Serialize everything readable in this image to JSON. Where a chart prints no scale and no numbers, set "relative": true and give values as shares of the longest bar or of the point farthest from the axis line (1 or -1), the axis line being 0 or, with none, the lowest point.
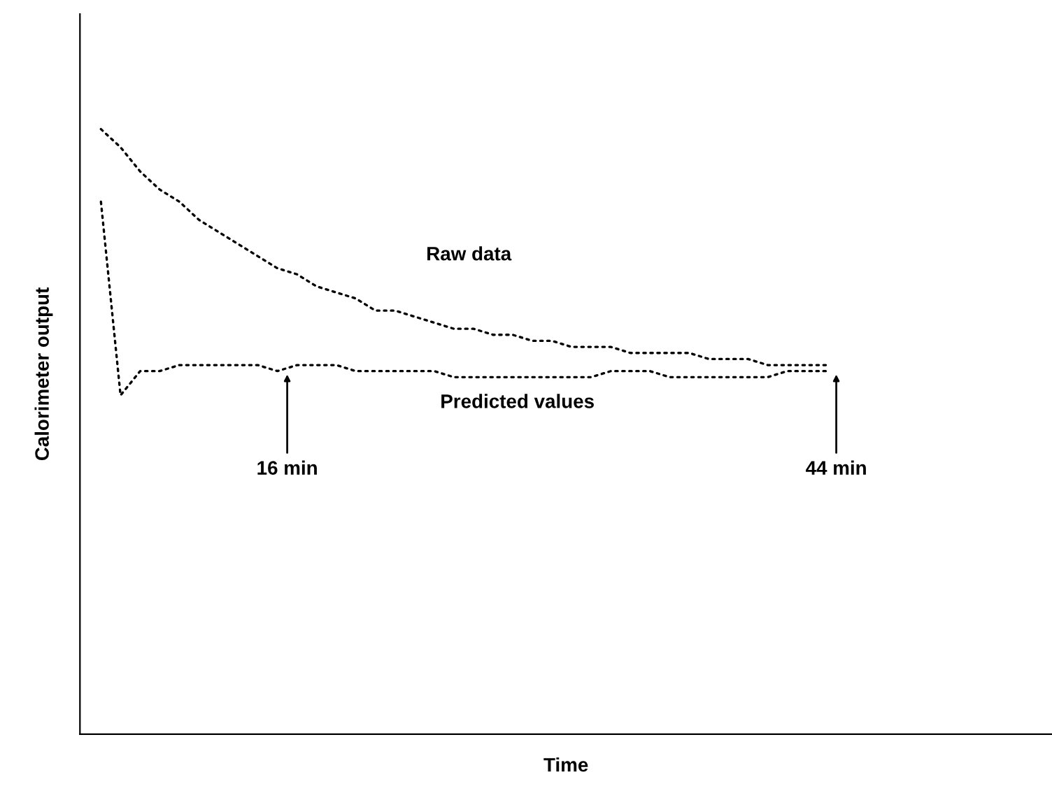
{
  "chart_data": {
    "type": "line",
    "relative": true,
    "xlabel": "Time",
    "ylabel": "Calorimeter output",
    "tick_labels": false,
    "line_style": "dotted",
    "categories": [
      null,
      null,
      null,
      null,
      null,
      null,
      null,
      null,
      null,
      null,
      null,
      null,
      null,
      null,
      null,
      null,
      null,
      null,
      null,
      null,
      null,
      null,
      null,
      null,
      null,
      null,
      null,
      null,
      null,
      null,
      null,
      null,
      null,
      null,
      null,
      null,
      null,
      null,
      null,
      null,
      null,
      null,
      null,
      null,
      null,
      null,
      null,
      null,
      null
    ],
    "series": [
      {
        "name": "Raw data",
        "color": "#000000",
        "values": [
          1.0,
          0.97,
          0.93,
          0.9,
          0.88,
          0.85,
          0.83,
          0.81,
          0.79,
          0.77,
          0.76,
          0.74,
          0.73,
          0.72,
          0.7,
          0.7,
          0.69,
          0.68,
          0.67,
          0.67,
          0.66,
          0.66,
          0.65,
          0.65,
          0.64,
          0.64,
          0.64,
          0.63,
          0.63,
          0.63,
          0.63,
          0.62,
          0.62,
          0.62,
          0.61,
          0.61,
          0.61,
          0.61,
          null,
          null,
          null,
          null,
          null,
          null,
          null,
          null,
          null,
          null,
          null
        ]
      },
      {
        "name": "Predicted values",
        "color": "#000000",
        "values": [
          0.88,
          0.56,
          0.6,
          0.6,
          0.61,
          0.61,
          0.61,
          0.61,
          0.61,
          0.6,
          0.61,
          0.61,
          0.61,
          0.6,
          0.6,
          0.6,
          0.6,
          0.6,
          0.59,
          0.59,
          0.59,
          0.59,
          0.59,
          0.59,
          0.59,
          0.59,
          0.6,
          0.6,
          0.6,
          0.59,
          0.59,
          0.59,
          0.59,
          0.59,
          0.59,
          0.6,
          0.6,
          0.6,
          null,
          null,
          null,
          null,
          null,
          null,
          null,
          null,
          null,
          null,
          null
        ]
      }
    ],
    "annotations": [
      "16 min",
      "44 min"
    ]
  }
}
